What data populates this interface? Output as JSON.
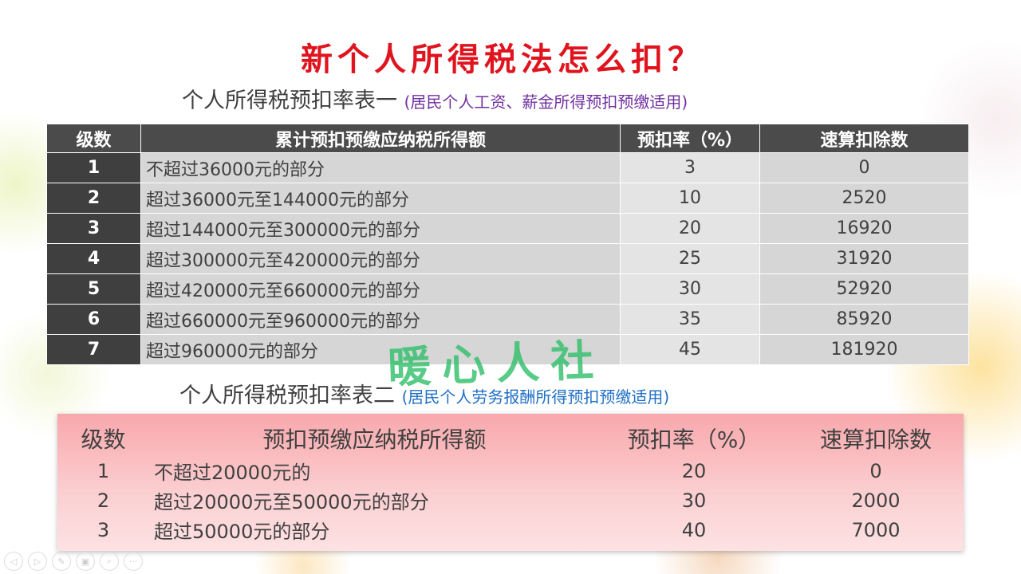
{
  "title": "新个人所得税法怎么扣？",
  "table1": {
    "title": "个人所得税预扣率表一",
    "note": "(居民个人工资、薪金所得预扣预缴适用)",
    "headers": [
      "级数",
      "累计预扣预缴应纳税所得额",
      "预扣率（%）",
      "速算扣除数"
    ],
    "rows": [
      [
        "1",
        "不超过36000元的部分",
        "3",
        "0"
      ],
      [
        "2",
        "超过36000元至144000元的部分",
        "10",
        "2520"
      ],
      [
        "3",
        "超过144000元至300000元的部分",
        "20",
        "16920"
      ],
      [
        "4",
        "超过300000元至420000元的部分",
        "25",
        "31920"
      ],
      [
        "5",
        "超过420000元至660000元的部分",
        "30",
        "52920"
      ],
      [
        "6",
        "超过660000元至960000元的部分",
        "35",
        "85920"
      ],
      [
        "7",
        "超过960000元的部分",
        "45",
        "181920"
      ]
    ]
  },
  "watermark": "暖心人社",
  "table2": {
    "title": "个人所得税预扣率表二",
    "note": "(居民个人劳务报酬所得预扣预缴适用)",
    "headers": [
      "级数",
      "预扣预缴应纳税所得额",
      "预扣率（%）",
      "速算扣除数"
    ],
    "rows": [
      [
        "1",
        "不超过20000元的",
        "20",
        "0"
      ],
      [
        "2",
        "超过20000元至50000元的部分",
        "30",
        "2000"
      ],
      [
        "3",
        "超过50000元的部分",
        "40",
        "7000"
      ]
    ]
  },
  "controls": [
    "previous-icon",
    "next-icon",
    "pen-icon",
    "slides-icon",
    "zoom-icon",
    "more-icon"
  ],
  "colors": {
    "title": "#e0141e",
    "note1": "#7030a0",
    "note2": "#1f6fc5",
    "watermark": "#2fbf6a"
  }
}
